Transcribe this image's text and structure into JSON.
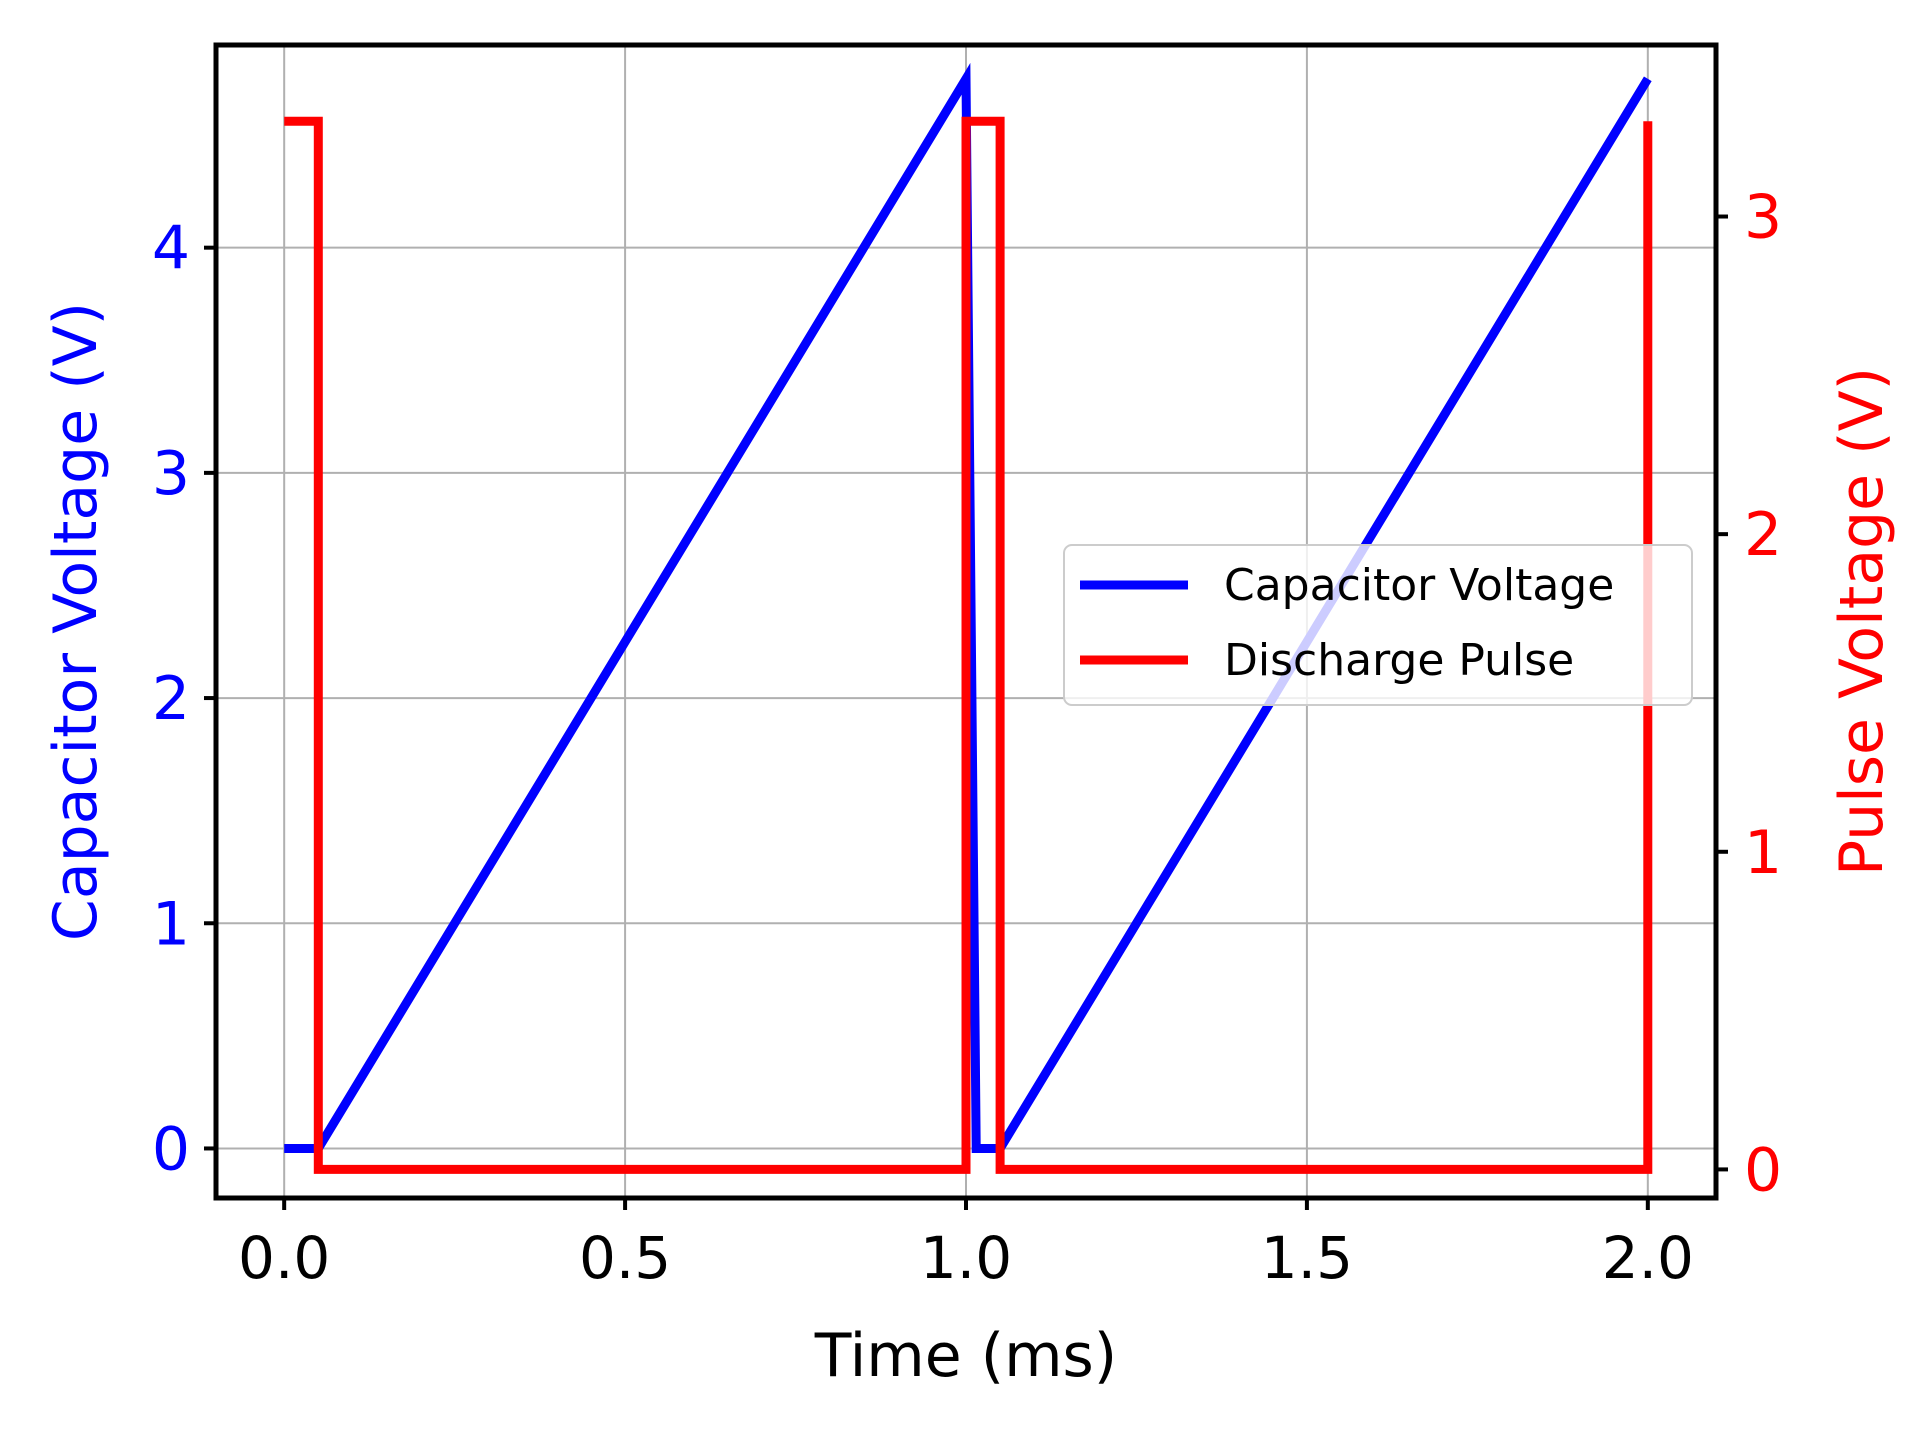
{
  "chart_data": {
    "type": "line",
    "title": "",
    "xlabel": "Time (ms)",
    "ylabel_left": "Capacitor Voltage (V)",
    "ylabel_right": "Pulse Voltage (V)",
    "xlim": [
      -0.1,
      2.1
    ],
    "ylim_left": [
      -0.22,
      4.9
    ],
    "ylim_right": [
      -0.09,
      3.54
    ],
    "x_ticks": [
      0.0,
      0.5,
      1.0,
      1.5,
      2.0
    ],
    "x_tick_labels": [
      "0.0",
      "0.5",
      "1.0",
      "1.5",
      "2.0"
    ],
    "y_left_ticks": [
      0,
      1,
      2,
      3,
      4
    ],
    "y_left_tick_labels": [
      "0",
      "1",
      "2",
      "3",
      "4"
    ],
    "y_right_ticks": [
      0,
      1,
      2,
      3
    ],
    "y_right_tick_labels": [
      "0",
      "1",
      "2",
      "3"
    ],
    "grid": true,
    "legend_position": "center-right",
    "colors": {
      "capacitor": "#0000ff",
      "pulse": "#ff0000",
      "axes": "#000000",
      "grid": "#b0b0b0"
    },
    "series": [
      {
        "name": "Capacitor Voltage",
        "axis": "left",
        "color": "#0000ff",
        "x": [
          0.0,
          0.05,
          1.0,
          1.015,
          1.05,
          2.0
        ],
        "y": [
          0.0,
          0.0,
          4.75,
          0.0,
          0.0,
          4.75
        ]
      },
      {
        "name": "Discharge Pulse",
        "axis": "right",
        "color": "#ff0000",
        "x": [
          0.0,
          0.05,
          0.05,
          1.0,
          1.0,
          1.05,
          1.05,
          2.0,
          2.0
        ],
        "y": [
          3.3,
          3.3,
          0.0,
          0.0,
          3.3,
          3.3,
          0.0,
          0.0,
          3.3
        ]
      }
    ]
  }
}
